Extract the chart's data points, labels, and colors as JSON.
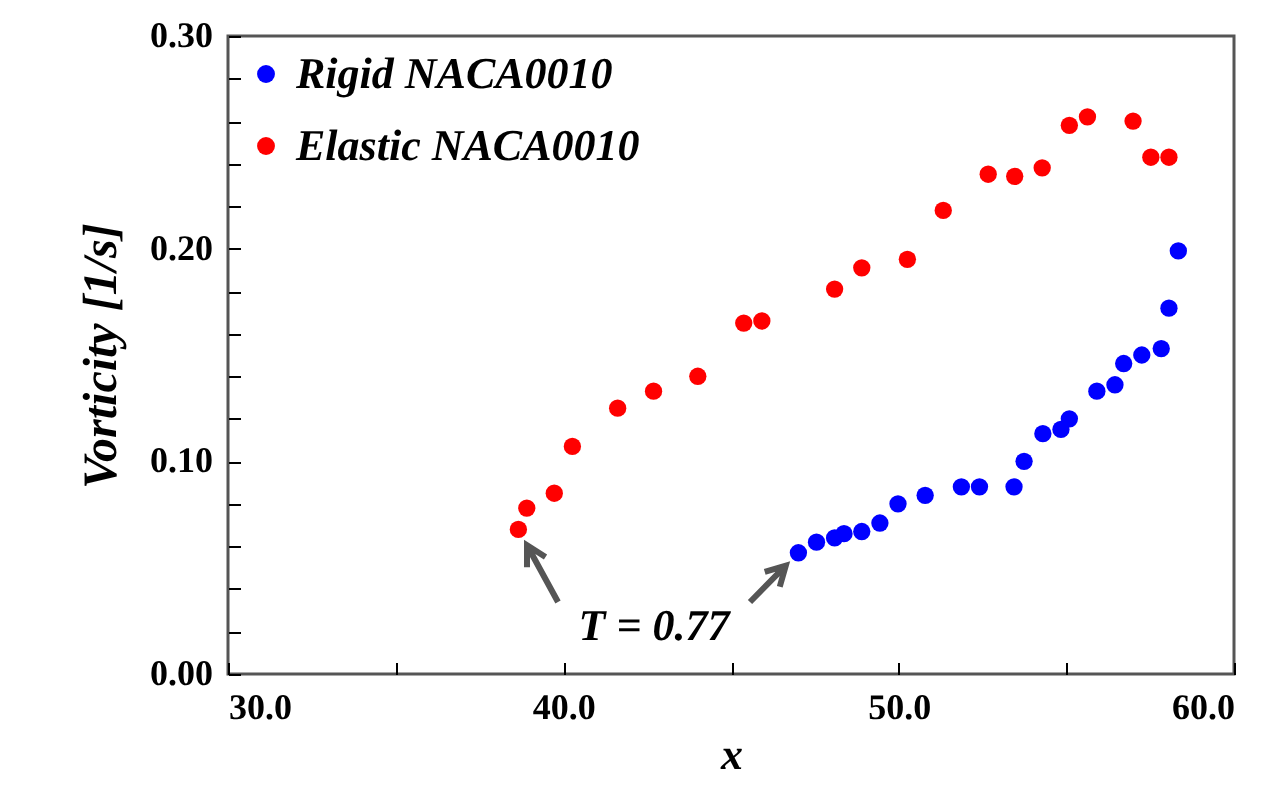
{
  "chart_data": {
    "type": "scatter",
    "xlabel": "x",
    "ylabel": "Vorticity  [1/s]",
    "xlim": [
      30,
      60
    ],
    "ylim": [
      0,
      0.3
    ],
    "xticks": [
      {
        "value": 30,
        "label": "30.0"
      },
      {
        "value": 35,
        "label": null
      },
      {
        "value": 40,
        "label": "40.0"
      },
      {
        "value": 45,
        "label": null
      },
      {
        "value": 50,
        "label": "50.0"
      },
      {
        "value": 55,
        "label": null
      },
      {
        "value": 60,
        "label": "60.0"
      }
    ],
    "yticks": [
      {
        "value": 0,
        "label": "0.00"
      },
      {
        "value": 0.02,
        "label": null
      },
      {
        "value": 0.04,
        "label": null
      },
      {
        "value": 0.06,
        "label": null
      },
      {
        "value": 0.08,
        "label": null
      },
      {
        "value": 0.1,
        "label": "0.10"
      },
      {
        "value": 0.12,
        "label": null
      },
      {
        "value": 0.14,
        "label": null
      },
      {
        "value": 0.16,
        "label": null
      },
      {
        "value": 0.18,
        "label": null
      },
      {
        "value": 0.2,
        "label": "0.20"
      },
      {
        "value": 0.22,
        "label": null
      },
      {
        "value": 0.24,
        "label": null
      },
      {
        "value": 0.26,
        "label": null
      },
      {
        "value": 0.28,
        "label": null
      },
      {
        "value": 0.3,
        "label": "0.30"
      }
    ],
    "grid": false,
    "legend": "top left",
    "marker": "circle",
    "series": [
      {
        "name": "Rigid NACA0010",
        "color": "#0000ff",
        "x": [
          47.01,
          47.55,
          48.09,
          48.37,
          48.9,
          49.44,
          49.98,
          50.79,
          51.87,
          52.41,
          53.44,
          53.74,
          54.3,
          54.84,
          55.09,
          55.91,
          56.45,
          56.71,
          57.25,
          57.83,
          58.06,
          58.34
        ],
        "values": [
          0.057,
          0.062,
          0.064,
          0.066,
          0.067,
          0.071,
          0.08,
          0.084,
          0.088,
          0.088,
          0.088,
          0.1,
          0.113,
          0.115,
          0.12,
          0.133,
          0.136,
          0.146,
          0.15,
          0.153,
          0.172,
          0.199
        ]
      },
      {
        "name": "Elastic NACA0010",
        "color": "#ff0000",
        "x": [
          38.66,
          38.91,
          39.73,
          40.27,
          41.62,
          42.69,
          44.01,
          45.38,
          45.92,
          48.09,
          48.9,
          50.26,
          51.33,
          52.67,
          53.46,
          54.28,
          55.09,
          55.63,
          56.99,
          57.52,
          58.06
        ],
        "values": [
          0.068,
          0.078,
          0.085,
          0.107,
          0.125,
          0.133,
          0.14,
          0.165,
          0.166,
          0.181,
          0.191,
          0.195,
          0.218,
          0.235,
          0.234,
          0.238,
          0.258,
          0.262,
          0.26,
          0.243,
          0.243
        ]
      }
    ],
    "annotations": [
      "T = 0.77"
    ]
  }
}
